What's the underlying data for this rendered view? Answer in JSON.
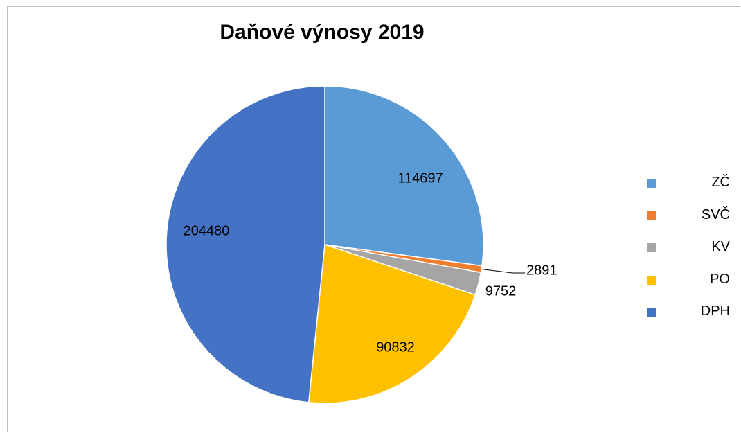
{
  "chart_data": {
    "type": "pie",
    "title": "Daňové výnosy 2019",
    "categories": [
      "ZČ",
      "SVČ",
      "KV",
      "PO",
      "DPH"
    ],
    "values": [
      114697,
      2891,
      9752,
      90832,
      204480
    ],
    "data_labels": [
      "114697",
      "2891",
      "9752",
      "90832",
      "204480"
    ],
    "colors": [
      "#5b9bd5",
      "#ed7d31",
      "#a5a5a5",
      "#ffc000",
      "#4472c4"
    ],
    "start_angle": "12 o'clock",
    "direction": "clockwise",
    "legend_position": "right"
  }
}
